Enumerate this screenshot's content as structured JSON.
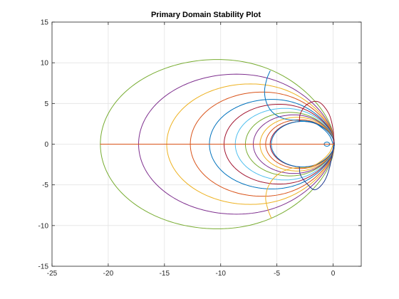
{
  "chart_data": {
    "type": "line",
    "title": "Primary Domain Stability Plot",
    "xlabel": "",
    "ylabel": "",
    "xlim": [
      -25,
      2.5
    ],
    "ylim": [
      -15,
      15
    ],
    "xticks": [
      -25,
      -20,
      -15,
      -10,
      -5,
      0
    ],
    "yticks": [
      -15,
      -10,
      -5,
      0,
      5,
      10,
      15
    ],
    "grid": true,
    "legend": "none",
    "series": [
      {
        "curve": "closed-contour",
        "color": "#77AC30",
        "x_range": [
          -20.7,
          0.1
        ],
        "y_range": [
          -10.4,
          10.4
        ]
      },
      {
        "curve": "closed-contour",
        "color": "#7E2F8E",
        "x_range": [
          -17.3,
          0.1
        ],
        "y_range": [
          -8.6,
          8.6
        ]
      },
      {
        "curve": "closed-contour",
        "color": "#EDB120",
        "x_range": [
          -14.8,
          0.1
        ],
        "y_range": [
          -7.4,
          7.4
        ]
      },
      {
        "curve": "closed-contour",
        "color": "#D95319",
        "x_range": [
          -12.7,
          0.1
        ],
        "y_range": [
          -6.4,
          6.4
        ]
      },
      {
        "curve": "closed-contour",
        "color": "#0072BD",
        "x_range": [
          -11.0,
          0.1
        ],
        "y_range": [
          -5.5,
          5.5
        ]
      },
      {
        "curve": "closed-contour",
        "color": "#A2142F",
        "x_range": [
          -9.7,
          0.1
        ],
        "y_range": [
          -4.9,
          4.9
        ]
      },
      {
        "curve": "closed-contour",
        "color": "#4DBEEE",
        "x_range": [
          -8.7,
          0.1
        ],
        "y_range": [
          -4.4,
          4.4
        ]
      },
      {
        "curve": "closed-contour",
        "color": "#77AC30",
        "x_range": [
          -7.8,
          0.1
        ],
        "y_range": [
          -3.9,
          3.9
        ]
      },
      {
        "curve": "closed-contour",
        "color": "#7E2F8E",
        "x_range": [
          -7.1,
          0.1
        ],
        "y_range": [
          -3.6,
          3.6
        ]
      },
      {
        "curve": "closed-contour",
        "color": "#EDB120",
        "x_range": [
          -6.5,
          0.1
        ],
        "y_range": [
          -3.3,
          3.3
        ]
      },
      {
        "curve": "closed-contour",
        "color": "#D95319",
        "x_range": [
          -6.0,
          0.1
        ],
        "y_range": [
          -3.0,
          3.0
        ]
      },
      {
        "curve": "closed-contour",
        "color": "#A2142F",
        "x_range": [
          -5.6,
          0.1
        ],
        "y_range": [
          -2.8,
          2.8
        ]
      },
      {
        "curve": "closed-contour",
        "color": "#0072BD",
        "x_range": [
          -5.5,
          0.1
        ],
        "y_range": [
          -2.8,
          2.8
        ]
      },
      {
        "curve": "closed-contour",
        "color": "#0072BD",
        "x_range": [
          -0.8,
          -0.3
        ],
        "y_range": [
          -0.25,
          0.25
        ]
      },
      {
        "curve": "boundary",
        "color": "#0072BD",
        "points": [
          [
            -5.6,
            9.0
          ],
          [
            -5.9,
            8.0
          ],
          [
            -6.1,
            6.5
          ],
          [
            -5.9,
            5.0
          ],
          [
            -5.3,
            3.8
          ],
          [
            -4.3,
            3.1
          ],
          [
            -3.0,
            2.9
          ],
          [
            -1.8,
            2.7
          ],
          [
            -0.9,
            1.9
          ],
          [
            -0.3,
            1.0
          ],
          [
            0.0,
            0.0
          ]
        ]
      },
      {
        "curve": "boundary",
        "color": "#A2142F",
        "points": [
          [
            -3.0,
            2.8
          ],
          [
            -2.9,
            3.8
          ],
          [
            -2.3,
            4.9
          ],
          [
            -1.3,
            5.2
          ],
          [
            -0.4,
            3.8
          ],
          [
            0.0,
            1.8
          ],
          [
            0.05,
            0.0
          ]
        ]
      },
      {
        "curve": "boundary",
        "color": "#EDB120",
        "points": [
          [
            -5.5,
            -9.1
          ],
          [
            -5.8,
            -8.0
          ],
          [
            -6.0,
            -6.6
          ],
          [
            -5.7,
            -5.0
          ],
          [
            -4.9,
            -3.7
          ],
          [
            -3.8,
            -3.0
          ],
          [
            -3.0,
            -2.9
          ],
          [
            -2.0,
            -2.8
          ],
          [
            -1.0,
            -2.0
          ],
          [
            -0.3,
            -1.0
          ],
          [
            0.0,
            0.0
          ]
        ]
      },
      {
        "curve": "boundary",
        "color": "#1F3A93",
        "points": [
          [
            -3.0,
            -2.8
          ],
          [
            -2.9,
            -3.8
          ],
          [
            -2.3,
            -4.9
          ],
          [
            -1.6,
            -5.6
          ],
          [
            -0.8,
            -4.6
          ],
          [
            -0.3,
            -2.8
          ],
          [
            0.05,
            0.0
          ]
        ]
      },
      {
        "curve": "segment",
        "color": "#D95319",
        "points": [
          [
            -20.7,
            0.0
          ],
          [
            0.1,
            0.0
          ]
        ]
      }
    ]
  }
}
